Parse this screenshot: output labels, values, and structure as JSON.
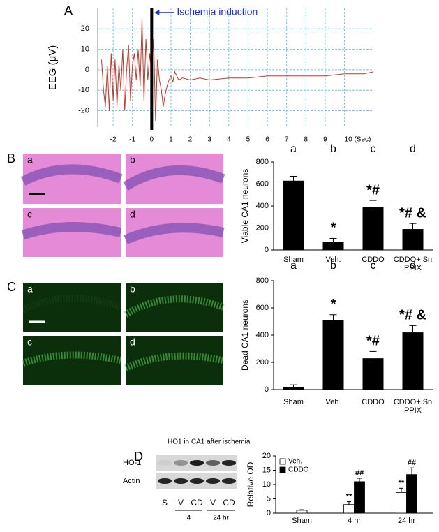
{
  "chart_data": [
    {
      "type": "line",
      "panel": "A",
      "ylabel": "EEG (μV)",
      "annotation": {
        "text": "Ischemia induction",
        "x": 0
      },
      "x": [
        -2.6,
        -2.5,
        -2.4,
        -2.3,
        -2.2,
        -2.1,
        -2.0,
        -1.9,
        -1.8,
        -1.7,
        -1.6,
        -1.5,
        -1.4,
        -1.3,
        -1.2,
        -1.1,
        -1.0,
        -0.9,
        -0.8,
        -0.7,
        -0.6,
        -0.5,
        -0.4,
        -0.3,
        -0.2,
        -0.1,
        0.0,
        0.1,
        0.2,
        0.3,
        0.4,
        0.5,
        0.6,
        0.7,
        0.8,
        0.9,
        1.0,
        1.1,
        1.2,
        1.4,
        1.6,
        2,
        2.5,
        3,
        4,
        5,
        6,
        7,
        8,
        9,
        10,
        11,
        11.5
      ],
      "series": [
        {
          "color": "#c0392b",
          "values": [
            5,
            -10,
            -18,
            2,
            -20,
            8,
            -15,
            5,
            -18,
            3,
            -10,
            10,
            -20,
            0,
            12,
            -15,
            2,
            8,
            -5,
            10,
            -8,
            25,
            -15,
            15,
            -5,
            8,
            -2,
            15,
            -25,
            5,
            -5,
            -10,
            -18,
            -12,
            -8,
            -5,
            -3,
            -6,
            -1,
            -5,
            -4,
            -5,
            -4,
            -5,
            -4,
            -4,
            -3,
            -3,
            -3,
            -3,
            -2,
            -2,
            -1
          ]
        }
      ],
      "xlim": [
        -2.8,
        11.5
      ],
      "ylim": [
        -28,
        30
      ],
      "xticks": [
        -2,
        -1,
        0,
        1,
        2,
        3,
        4,
        5,
        6,
        7,
        8,
        9,
        {
          "value": 10,
          "label": "10 (Sec)"
        }
      ],
      "yticks": [
        20,
        10,
        0,
        -10,
        -20
      ],
      "grid": true
    },
    {
      "type": "bar",
      "panel": "B",
      "image_labels": [
        "a",
        "b",
        "c",
        "d"
      ],
      "ylabel": "Viable CA1 neurons",
      "categories": [
        "Sham",
        "Veh.",
        "CDDO",
        "CDDO+ Sn PPIX"
      ],
      "group_labels": [
        "a",
        "b",
        "c",
        "d"
      ],
      "values": [
        630,
        75,
        390,
        190
      ],
      "errors": [
        40,
        30,
        60,
        50
      ],
      "annotations": [
        null,
        "*",
        "*#",
        "*# &"
      ],
      "color": "#000000",
      "ylim": [
        0,
        800
      ],
      "yticks": [
        0,
        200,
        400,
        600,
        800
      ]
    },
    {
      "type": "bar",
      "panel": "C",
      "image_labels": [
        "a",
        "b",
        "c",
        "d"
      ],
      "ylabel": "Dead CA1 neurons",
      "categories": [
        "Sham",
        "Veh.",
        "CDDO",
        "CDDO+ Sn PPIX"
      ],
      "group_labels": [
        "a",
        "b",
        "c",
        "d"
      ],
      "values": [
        20,
        510,
        230,
        420
      ],
      "errors": [
        15,
        40,
        50,
        50
      ],
      "annotations": [
        null,
        "*",
        "*#",
        "*# &"
      ],
      "color": "#000000",
      "ylim": [
        0,
        800
      ],
      "yticks": [
        0,
        200,
        400,
        600,
        800
      ]
    },
    {
      "type": "grouped_bar",
      "panel": "D",
      "ylabel": "Relative OD",
      "blot": {
        "title": "HO1 in CA1 after ischemia",
        "rows": [
          "HO-1",
          "Actin"
        ],
        "lanes": [
          "S",
          "V",
          "CD",
          "V",
          "CD"
        ],
        "times": [
          "4",
          "24 hr"
        ]
      },
      "categories": [
        "Sham",
        "4 hr",
        "24 hr"
      ],
      "series": [
        {
          "name": "Veh.",
          "color": "#ffffff",
          "values": [
            1,
            3,
            7.2
          ],
          "errors": [
            0.2,
            1,
            1.5
          ],
          "annotations": [
            null,
            "**",
            "**"
          ]
        },
        {
          "name": "CDDO",
          "color": "#000000",
          "values": [
            null,
            11,
            13.5
          ],
          "errors": [
            null,
            1.2,
            2.3
          ],
          "annotations": [
            null,
            "##",
            "##"
          ]
        }
      ],
      "ylim": [
        0,
        20
      ],
      "yticks": [
        0,
        5,
        10,
        15,
        20
      ],
      "legend": "top-left"
    }
  ]
}
